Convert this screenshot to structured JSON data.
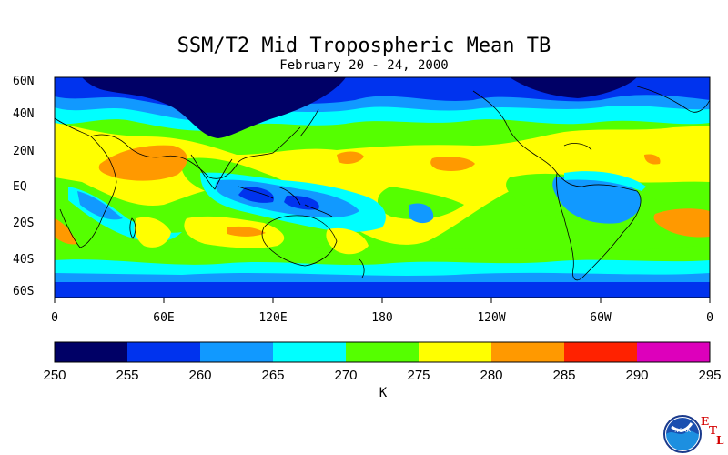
{
  "title": "SSM/T2 Mid Tropospheric Mean TB",
  "subtitle": "February 20 - 24, 2000",
  "lat_labels": [
    "60N",
    "40N",
    "20N",
    "EQ",
    "20S",
    "40S",
    "60S"
  ],
  "lon_labels": [
    "0",
    "60E",
    "120E",
    "180",
    "120W",
    "60W",
    "0"
  ],
  "colorbar": {
    "ticks": [
      "250",
      "255",
      "260",
      "265",
      "270",
      "275",
      "280",
      "285",
      "290",
      "295"
    ],
    "unit": "K",
    "colors": [
      "#000066",
      "#0033ee",
      "#1199ff",
      "#00ffff",
      "#55ff00",
      "#ffff00",
      "#ff9900",
      "#ff2200",
      "#dd00bb"
    ]
  },
  "logo": {
    "letters": [
      "E",
      "T",
      "L"
    ],
    "emblem_text": "NOAA"
  }
}
